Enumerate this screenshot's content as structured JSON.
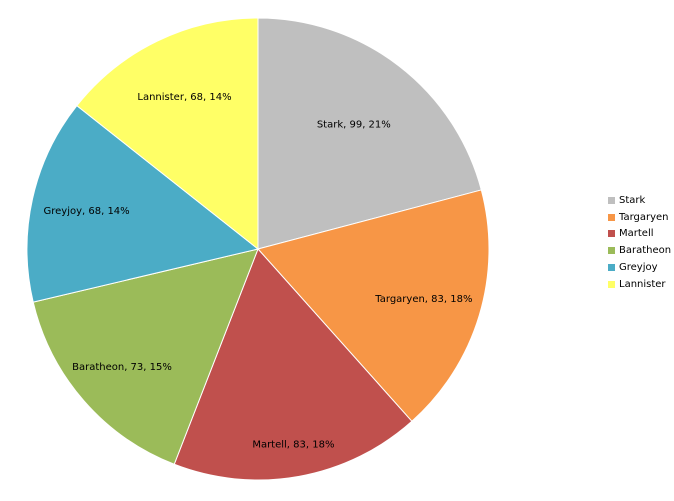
{
  "chart_data": {
    "type": "pie",
    "categories": [
      "Stark",
      "Targaryen",
      "Martell",
      "Baratheon",
      "Greyjoy",
      "Lannister"
    ],
    "values": [
      99,
      83,
      83,
      73,
      68,
      68
    ],
    "percents": [
      "21%",
      "18%",
      "18%",
      "15%",
      "14%",
      "14%"
    ],
    "labels": [
      "Stark, 99, 21%",
      "Targaryen, 83, 18%",
      "Martell, 83, 18%",
      "Baratheon, 73, 15%",
      "Greyjoy, 68, 14%",
      "Lannister, 68, 14%"
    ],
    "colors": [
      "#bfbfbf",
      "#f79646",
      "#c0504d",
      "#9bbb59",
      "#4bacc6",
      "#ffff66"
    ],
    "legend_position": "right"
  }
}
